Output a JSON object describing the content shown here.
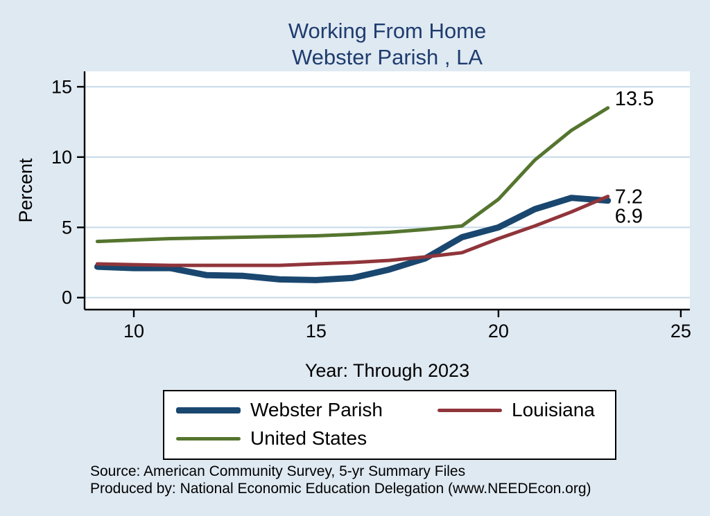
{
  "page": {
    "background": "#dfe9f2",
    "title_line1": "Working From Home",
    "title_line2": "Webster Parish , LA",
    "title_color": "#1e3c6e"
  },
  "chart_data": {
    "type": "line",
    "title": "Working From Home",
    "subtitle": "Webster Parish , LA",
    "xlabel": "Year: Through 2023",
    "ylabel": "Percent",
    "x": [
      9,
      10,
      11,
      12,
      13,
      14,
      15,
      16,
      17,
      18,
      19,
      20,
      21,
      22,
      23
    ],
    "series": [
      {
        "name": "Webster Parish",
        "color": "#1a476f",
        "width": 9,
        "values": [
          2.2,
          2.1,
          2.1,
          1.6,
          1.55,
          1.3,
          1.25,
          1.4,
          2.0,
          2.8,
          4.3,
          5.0,
          6.3,
          7.1,
          6.9
        ],
        "end_label": "6.9"
      },
      {
        "name": "Louisiana",
        "color": "#90353b",
        "width": 5,
        "values": [
          2.4,
          2.35,
          2.3,
          2.3,
          2.3,
          2.3,
          2.4,
          2.5,
          2.65,
          2.9,
          3.2,
          4.2,
          5.1,
          6.1,
          7.2
        ],
        "end_label": "7.2"
      },
      {
        "name": "United States",
        "color": "#55752f",
        "width": 5,
        "values": [
          4.0,
          4.1,
          4.2,
          4.25,
          4.3,
          4.35,
          4.4,
          4.5,
          4.65,
          4.85,
          5.1,
          7.0,
          9.8,
          11.9,
          13.5
        ],
        "end_label": "13.5"
      }
    ],
    "xticks": [
      10,
      15,
      20,
      25
    ],
    "yticks": [
      0,
      5,
      10,
      15
    ],
    "xlim": [
      8.65,
      25.25
    ],
    "ylim": [
      -0.85,
      16.1
    ],
    "grid": true,
    "grid_color": "#c8dcea",
    "legend_position": "bottom"
  },
  "footer": {
    "line1": "Source: American Community Survey, 5-yr Summary Files",
    "line2": "Produced by: National Economic Education Delegation (www.NEEDEcon.org)"
  }
}
